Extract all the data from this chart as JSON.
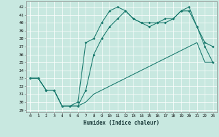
{
  "xlabel": "Humidex (Indice chaleur)",
  "bg_color": "#c8e8e0",
  "line_color": "#1a7a6e",
  "grid_color": "#ffffff",
  "xlim": [
    -0.5,
    23.5
  ],
  "ylim": [
    28.7,
    42.7
  ],
  "xticks": [
    0,
    1,
    2,
    3,
    4,
    5,
    6,
    7,
    8,
    9,
    10,
    11,
    12,
    13,
    14,
    15,
    16,
    17,
    18,
    19,
    20,
    21,
    22,
    23
  ],
  "yticks": [
    29,
    30,
    31,
    32,
    33,
    34,
    35,
    36,
    37,
    38,
    39,
    40,
    41,
    42
  ],
  "line1_x": [
    0,
    1,
    2,
    3,
    4,
    5,
    6,
    7,
    8,
    9,
    10,
    11,
    12,
    13,
    14,
    15,
    16,
    17,
    18,
    19,
    20,
    21,
    22,
    23
  ],
  "line1_y": [
    33,
    33,
    31.5,
    31.5,
    29.5,
    29.5,
    30,
    37.5,
    38,
    40,
    41.5,
    42,
    41.5,
    40.5,
    40,
    40,
    40,
    40.5,
    40.5,
    41.5,
    41.5,
    39.5,
    37.5,
    37
  ],
  "line2_x": [
    0,
    1,
    2,
    3,
    4,
    5,
    6,
    7,
    8,
    9,
    10,
    11,
    12,
    13,
    14,
    15,
    16,
    17,
    18,
    19,
    20,
    21,
    22,
    23
  ],
  "line2_y": [
    33,
    33,
    31.5,
    31.5,
    29.5,
    29.5,
    29.5,
    31.5,
    36,
    38,
    39.5,
    40.5,
    41.5,
    40.5,
    40,
    39.5,
    40,
    40,
    40.5,
    41.5,
    42,
    39.5,
    37,
    35
  ],
  "line3_x": [
    0,
    1,
    2,
    3,
    4,
    5,
    6,
    7,
    8,
    9,
    10,
    11,
    12,
    13,
    14,
    15,
    16,
    17,
    18,
    19,
    20,
    21,
    22,
    23
  ],
  "line3_y": [
    33,
    33,
    31.5,
    31.5,
    29.5,
    29.5,
    29.5,
    30,
    31,
    31.5,
    32,
    32.5,
    33,
    33.5,
    34,
    34.5,
    35,
    35.5,
    36,
    36.5,
    37,
    37.5,
    35,
    35
  ]
}
